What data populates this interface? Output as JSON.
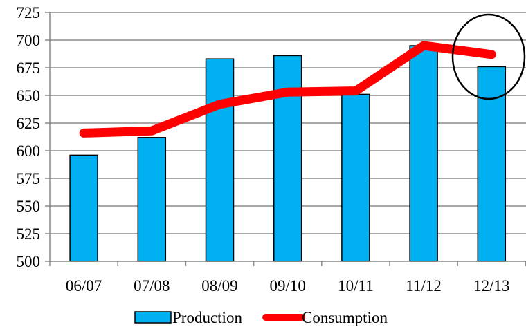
{
  "chart_data": {
    "type": "bar",
    "title": "",
    "xlabel": "",
    "ylabel": "",
    "categories": [
      "06/07",
      "07/08",
      "08/09",
      "09/10",
      "10/11",
      "11/12",
      "12/13"
    ],
    "ylim": [
      500,
      725
    ],
    "yticks": [
      500,
      525,
      550,
      575,
      600,
      625,
      650,
      675,
      700,
      725
    ],
    "grid": true,
    "legend_position": "bottom",
    "series": [
      {
        "name": "Production",
        "kind": "bar",
        "color": "#00B0F0",
        "values": [
          596,
          612,
          683,
          686,
          651,
          695,
          676
        ]
      },
      {
        "name": "Consumption",
        "kind": "line",
        "color": "#FF0000",
        "values": [
          616,
          618,
          642,
          653,
          654,
          695,
          687
        ]
      }
    ],
    "annotation": {
      "shape": "circle",
      "target_category": "12/13"
    }
  }
}
